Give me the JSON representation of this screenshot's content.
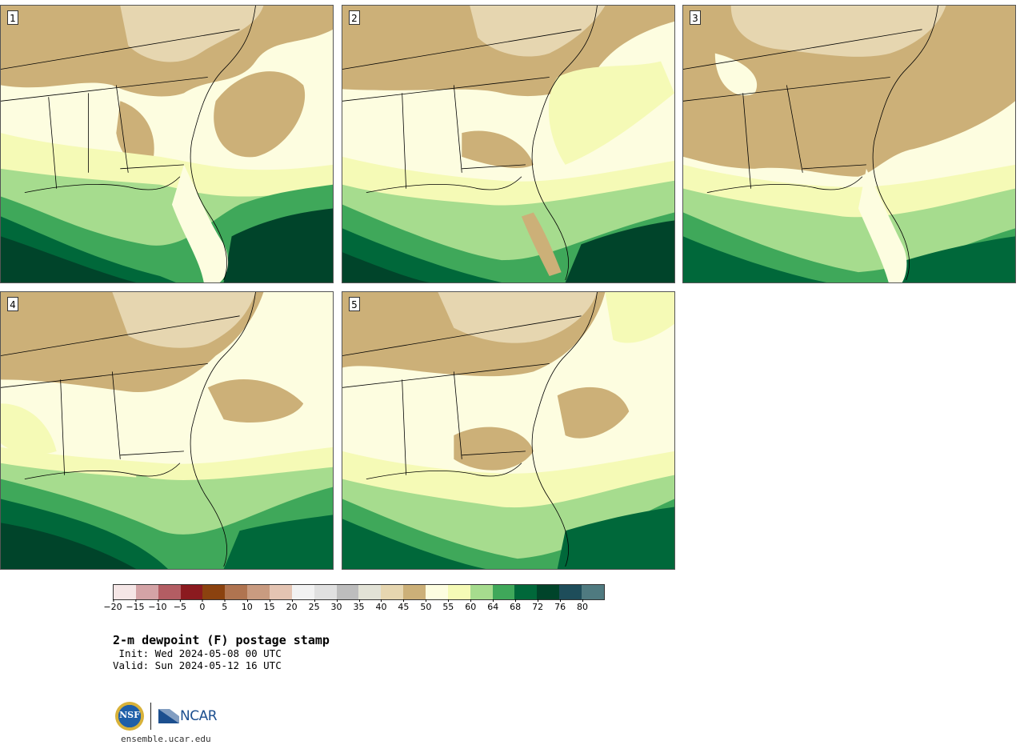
{
  "panels": [
    {
      "label": "1"
    },
    {
      "label": "2"
    },
    {
      "label": "3"
    },
    {
      "label": "4"
    },
    {
      "label": "5"
    }
  ],
  "colorbar": {
    "colors": [
      "#f5e6e6",
      "#d4a3a6",
      "#b35d63",
      "#8b1a1f",
      "#8b420f",
      "#b07450",
      "#c99b80",
      "#e4c4b2",
      "#f2f2f2",
      "#e0e0e0",
      "#bdbdbd",
      "#e2e2d6",
      "#e6d6b0",
      "#ccb078",
      "#fdfde0",
      "#f5fab6",
      "#a6dc8e",
      "#3fa85a",
      "#00683a",
      "#00442a",
      "#1e4d5a",
      "#4f7a80"
    ],
    "tick_labels": [
      "-20",
      "-15",
      "-10",
      "-5",
      "0",
      "5",
      "10",
      "15",
      "20",
      "25",
      "30",
      "35",
      "40",
      "45",
      "50",
      "55",
      "60",
      "64",
      "68",
      "72",
      "76",
      "80"
    ]
  },
  "title": "2-m dewpoint (F) postage stamp",
  "init": " Init: Wed 2024-05-08 00 UTC",
  "valid": "Valid: Sun 2024-05-12 16 UTC",
  "logos": {
    "nsf_text": "NSF",
    "ncar_text": "NCAR"
  },
  "site": "ensemble.ucar.edu"
}
